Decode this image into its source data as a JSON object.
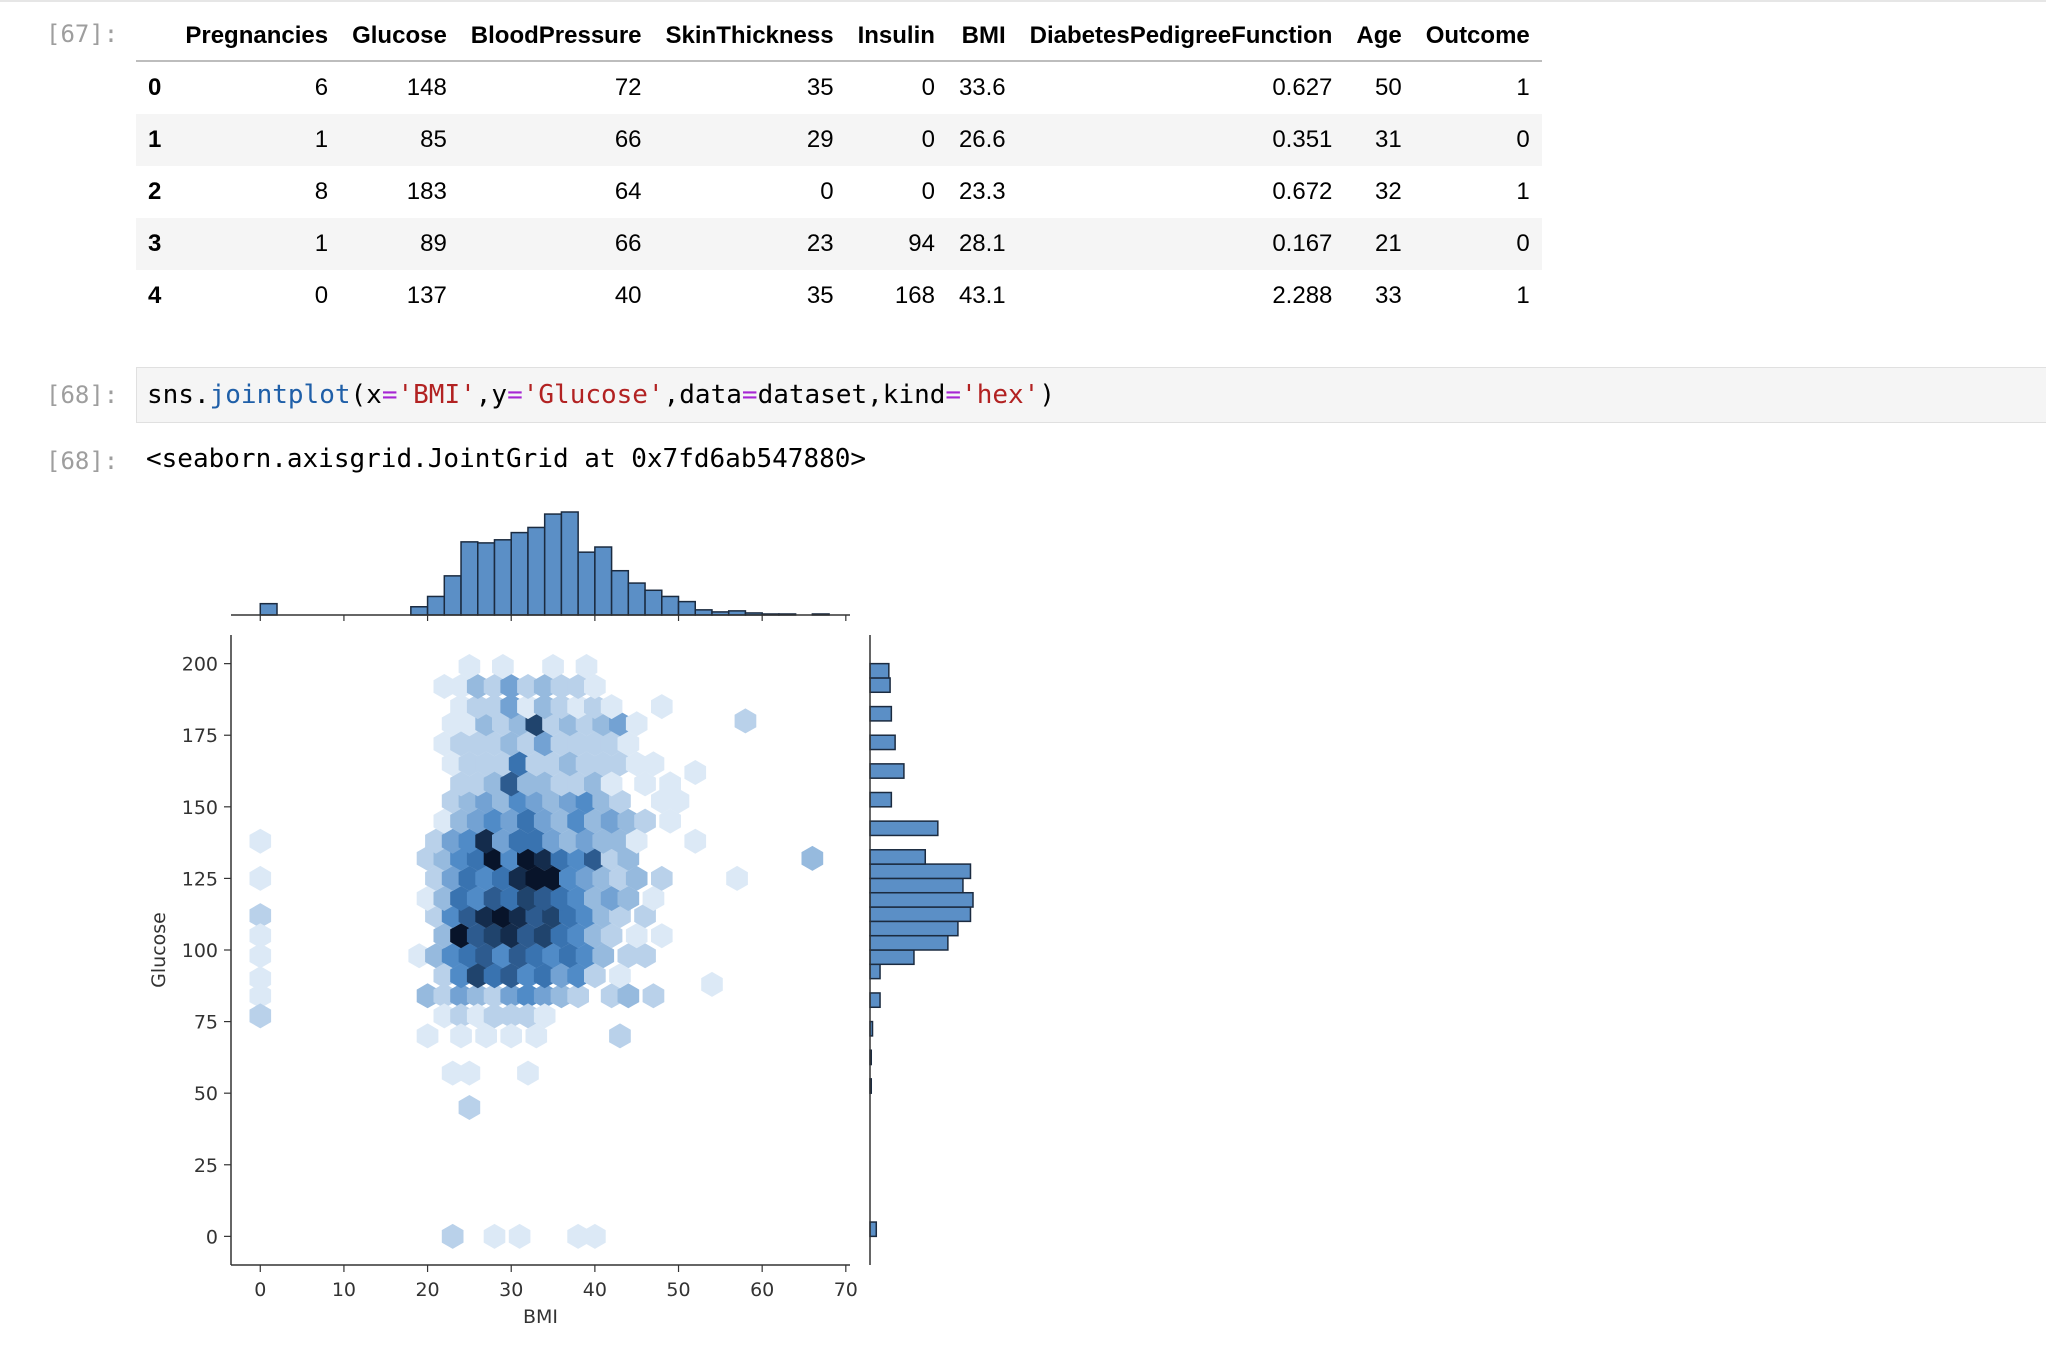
{
  "cells": {
    "df_prompt": "[67]:",
    "code_prompt": "[68]:",
    "out_prompt": "[68]:"
  },
  "dataframe": {
    "columns": [
      "",
      "Pregnancies",
      "Glucose",
      "BloodPressure",
      "SkinThickness",
      "Insulin",
      "BMI",
      "DiabetesPedigreeFunction",
      "Age",
      "Outcome"
    ],
    "rows": [
      [
        "0",
        "6",
        "148",
        "72",
        "35",
        "0",
        "33.6",
        "0.627",
        "50",
        "1"
      ],
      [
        "1",
        "1",
        "85",
        "66",
        "29",
        "0",
        "26.6",
        "0.351",
        "31",
        "0"
      ],
      [
        "2",
        "8",
        "183",
        "64",
        "0",
        "0",
        "23.3",
        "0.672",
        "32",
        "1"
      ],
      [
        "3",
        "1",
        "89",
        "66",
        "23",
        "94",
        "28.1",
        "0.167",
        "21",
        "0"
      ],
      [
        "4",
        "0",
        "137",
        "40",
        "35",
        "168",
        "43.1",
        "2.288",
        "33",
        "1"
      ]
    ]
  },
  "code": {
    "tokens": [
      {
        "t": "sns.",
        "c": ""
      },
      {
        "t": "jointplot",
        "c": "tk-fn"
      },
      {
        "t": "(x",
        "c": ""
      },
      {
        "t": "=",
        "c": "tk-op"
      },
      {
        "t": "'BMI'",
        "c": "tk-str"
      },
      {
        "t": ",y",
        "c": ""
      },
      {
        "t": "=",
        "c": "tk-op"
      },
      {
        "t": "'Glucose'",
        "c": "tk-str"
      },
      {
        "t": ",data",
        "c": ""
      },
      {
        "t": "=",
        "c": "tk-op"
      },
      {
        "t": "dataset,kind",
        "c": ""
      },
      {
        "t": "=",
        "c": "tk-op"
      },
      {
        "t": "'hex'",
        "c": "tk-str"
      },
      {
        "t": ")",
        "c": ""
      }
    ]
  },
  "output_text": "<seaborn.axisgrid.JointGrid at 0x7fd6ab547880>",
  "chart_data": {
    "type": "hexbin",
    "xlabel": "BMI",
    "ylabel": "Glucose",
    "xlim": [
      -3.5,
      70.5
    ],
    "ylim": [
      -10,
      210
    ],
    "xticks": [
      0,
      10,
      20,
      30,
      40,
      50,
      60,
      70
    ],
    "yticks": [
      0,
      25,
      50,
      75,
      100,
      125,
      150,
      175,
      200
    ],
    "colormap": {
      "low": "#dce9f6",
      "mid": "#3f7fc1",
      "high": "#08142a"
    },
    "hex_cells": [
      [
        0,
        138,
        1
      ],
      [
        0,
        125,
        1
      ],
      [
        0,
        112,
        2
      ],
      [
        0,
        105,
        1
      ],
      [
        0,
        98,
        1
      ],
      [
        0,
        90,
        1
      ],
      [
        0,
        84,
        1
      ],
      [
        0,
        77,
        2
      ],
      [
        23,
        0,
        2
      ],
      [
        28,
        0,
        1
      ],
      [
        31,
        0,
        1
      ],
      [
        38,
        0,
        1
      ],
      [
        40,
        0,
        1
      ],
      [
        25,
        45,
        2
      ],
      [
        23,
        57,
        1
      ],
      [
        25,
        57,
        1
      ],
      [
        32,
        57,
        1
      ],
      [
        20,
        84,
        3
      ],
      [
        22,
        84,
        2
      ],
      [
        24,
        84,
        4
      ],
      [
        26,
        84,
        3
      ],
      [
        28,
        84,
        2
      ],
      [
        30,
        84,
        4
      ],
      [
        32,
        84,
        5
      ],
      [
        34,
        84,
        4
      ],
      [
        36,
        84,
        3
      ],
      [
        38,
        84,
        2
      ],
      [
        42,
        84,
        2
      ],
      [
        44,
        84,
        3
      ],
      [
        47,
        84,
        2
      ],
      [
        22,
        77,
        1
      ],
      [
        24,
        77,
        2
      ],
      [
        26,
        77,
        1
      ],
      [
        28,
        77,
        2
      ],
      [
        30,
        77,
        2
      ],
      [
        32,
        77,
        2
      ],
      [
        34,
        77,
        1
      ],
      [
        20,
        70,
        1
      ],
      [
        24,
        70,
        1
      ],
      [
        27,
        70,
        1
      ],
      [
        30,
        70,
        1
      ],
      [
        33,
        70,
        1
      ],
      [
        43,
        70,
        2
      ],
      [
        54,
        88,
        1
      ],
      [
        19,
        98,
        1
      ],
      [
        21,
        98,
        3
      ],
      [
        23,
        98,
        5
      ],
      [
        25,
        98,
        6
      ],
      [
        27,
        98,
        7
      ],
      [
        29,
        98,
        5
      ],
      [
        31,
        98,
        7
      ],
      [
        33,
        98,
        6
      ],
      [
        35,
        98,
        5
      ],
      [
        37,
        98,
        6
      ],
      [
        39,
        98,
        5
      ],
      [
        41,
        98,
        3
      ],
      [
        44,
        98,
        2
      ],
      [
        46,
        98,
        2
      ],
      [
        22,
        91,
        2
      ],
      [
        24,
        91,
        5
      ],
      [
        26,
        91,
        8
      ],
      [
        28,
        91,
        6
      ],
      [
        30,
        91,
        7
      ],
      [
        32,
        91,
        5
      ],
      [
        34,
        91,
        6
      ],
      [
        36,
        91,
        4
      ],
      [
        38,
        91,
        5
      ],
      [
        40,
        91,
        2
      ],
      [
        43,
        91,
        1
      ],
      [
        22,
        105,
        3
      ],
      [
        24,
        105,
        10
      ],
      [
        26,
        105,
        7
      ],
      [
        28,
        105,
        8
      ],
      [
        30,
        105,
        9
      ],
      [
        32,
        105,
        7
      ],
      [
        34,
        105,
        8
      ],
      [
        36,
        105,
        6
      ],
      [
        38,
        105,
        5
      ],
      [
        40,
        105,
        3
      ],
      [
        42,
        105,
        2
      ],
      [
        45,
        105,
        1
      ],
      [
        48,
        105,
        1
      ],
      [
        21,
        112,
        2
      ],
      [
        23,
        112,
        5
      ],
      [
        25,
        112,
        7
      ],
      [
        27,
        112,
        9
      ],
      [
        29,
        112,
        10
      ],
      [
        31,
        112,
        9
      ],
      [
        33,
        112,
        7
      ],
      [
        35,
        112,
        8
      ],
      [
        37,
        112,
        6
      ],
      [
        39,
        112,
        5
      ],
      [
        41,
        112,
        3
      ],
      [
        43,
        112,
        2
      ],
      [
        46,
        112,
        2
      ],
      [
        20,
        118,
        1
      ],
      [
        22,
        118,
        3
      ],
      [
        24,
        118,
        6
      ],
      [
        26,
        118,
        5
      ],
      [
        28,
        118,
        7
      ],
      [
        30,
        118,
        6
      ],
      [
        32,
        118,
        8
      ],
      [
        34,
        118,
        7
      ],
      [
        36,
        118,
        6
      ],
      [
        38,
        118,
        5
      ],
      [
        40,
        118,
        3
      ],
      [
        42,
        118,
        4
      ],
      [
        44,
        118,
        3
      ],
      [
        47,
        118,
        1
      ],
      [
        21,
        125,
        2
      ],
      [
        23,
        125,
        4
      ],
      [
        25,
        125,
        6
      ],
      [
        27,
        125,
        5
      ],
      [
        29,
        125,
        6
      ],
      [
        31,
        125,
        9
      ],
      [
        33,
        125,
        10
      ],
      [
        35,
        125,
        10
      ],
      [
        37,
        125,
        5
      ],
      [
        39,
        125,
        4
      ],
      [
        41,
        125,
        3
      ],
      [
        43,
        125,
        2
      ],
      [
        45,
        125,
        3
      ],
      [
        48,
        125,
        2
      ],
      [
        57,
        125,
        1
      ],
      [
        20,
        132,
        2
      ],
      [
        22,
        132,
        3
      ],
      [
        24,
        132,
        5
      ],
      [
        26,
        132,
        6
      ],
      [
        28,
        132,
        10
      ],
      [
        30,
        132,
        5
      ],
      [
        32,
        132,
        10
      ],
      [
        34,
        132,
        9
      ],
      [
        36,
        132,
        6
      ],
      [
        38,
        132,
        5
      ],
      [
        40,
        132,
        7
      ],
      [
        42,
        132,
        2
      ],
      [
        44,
        132,
        3
      ],
      [
        52,
        138,
        1
      ],
      [
        66,
        132,
        3
      ],
      [
        21,
        138,
        2
      ],
      [
        23,
        138,
        4
      ],
      [
        25,
        138,
        5
      ],
      [
        27,
        138,
        9
      ],
      [
        29,
        138,
        4
      ],
      [
        31,
        138,
        6
      ],
      [
        33,
        138,
        6
      ],
      [
        35,
        138,
        4
      ],
      [
        37,
        138,
        3
      ],
      [
        39,
        138,
        4
      ],
      [
        41,
        138,
        3
      ],
      [
        43,
        138,
        3
      ],
      [
        45,
        138,
        1
      ],
      [
        22,
        145,
        1
      ],
      [
        24,
        145,
        3
      ],
      [
        26,
        145,
        4
      ],
      [
        28,
        145,
        5
      ],
      [
        30,
        145,
        4
      ],
      [
        32,
        145,
        6
      ],
      [
        34,
        145,
        4
      ],
      [
        36,
        145,
        3
      ],
      [
        38,
        145,
        5
      ],
      [
        40,
        145,
        3
      ],
      [
        42,
        145,
        4
      ],
      [
        44,
        145,
        3
      ],
      [
        46,
        145,
        2
      ],
      [
        49,
        145,
        1
      ],
      [
        23,
        152,
        2
      ],
      [
        25,
        152,
        3
      ],
      [
        27,
        152,
        4
      ],
      [
        29,
        152,
        3
      ],
      [
        31,
        152,
        5
      ],
      [
        33,
        152,
        4
      ],
      [
        35,
        152,
        3
      ],
      [
        37,
        152,
        4
      ],
      [
        39,
        152,
        5
      ],
      [
        41,
        152,
        3
      ],
      [
        43,
        152,
        2
      ],
      [
        48,
        152,
        1
      ],
      [
        50,
        152,
        1
      ],
      [
        24,
        158,
        2
      ],
      [
        26,
        158,
        2
      ],
      [
        28,
        158,
        3
      ],
      [
        30,
        158,
        7
      ],
      [
        32,
        158,
        3
      ],
      [
        34,
        158,
        3
      ],
      [
        36,
        158,
        2
      ],
      [
        38,
        158,
        2
      ],
      [
        40,
        158,
        3
      ],
      [
        42,
        158,
        1
      ],
      [
        46,
        158,
        1
      ],
      [
        49,
        158,
        1
      ],
      [
        23,
        165,
        1
      ],
      [
        25,
        165,
        2
      ],
      [
        27,
        165,
        2
      ],
      [
        29,
        165,
        2
      ],
      [
        31,
        165,
        6
      ],
      [
        33,
        165,
        2
      ],
      [
        35,
        165,
        2
      ],
      [
        37,
        165,
        3
      ],
      [
        39,
        165,
        2
      ],
      [
        41,
        165,
        2
      ],
      [
        43,
        165,
        2
      ],
      [
        45,
        165,
        1
      ],
      [
        47,
        165,
        1
      ],
      [
        52,
        162,
        1
      ],
      [
        22,
        172,
        1
      ],
      [
        24,
        172,
        2
      ],
      [
        26,
        172,
        2
      ],
      [
        28,
        172,
        2
      ],
      [
        30,
        172,
        3
      ],
      [
        32,
        172,
        2
      ],
      [
        34,
        172,
        4
      ],
      [
        36,
        172,
        2
      ],
      [
        38,
        172,
        2
      ],
      [
        40,
        172,
        2
      ],
      [
        42,
        172,
        2
      ],
      [
        44,
        172,
        1
      ],
      [
        23,
        179,
        1
      ],
      [
        25,
        179,
        1
      ],
      [
        27,
        179,
        3
      ],
      [
        29,
        179,
        2
      ],
      [
        31,
        179,
        3
      ],
      [
        33,
        179,
        8
      ],
      [
        35,
        179,
        2
      ],
      [
        37,
        179,
        3
      ],
      [
        39,
        179,
        2
      ],
      [
        41,
        179,
        3
      ],
      [
        43,
        179,
        4
      ],
      [
        45,
        179,
        1
      ],
      [
        58,
        180,
        2
      ],
      [
        24,
        185,
        1
      ],
      [
        26,
        185,
        2
      ],
      [
        28,
        185,
        2
      ],
      [
        30,
        185,
        4
      ],
      [
        32,
        185,
        1
      ],
      [
        34,
        185,
        3
      ],
      [
        36,
        185,
        2
      ],
      [
        38,
        185,
        1
      ],
      [
        40,
        185,
        2
      ],
      [
        42,
        185,
        1
      ],
      [
        48,
        185,
        1
      ],
      [
        22,
        192,
        1
      ],
      [
        24,
        192,
        1
      ],
      [
        26,
        192,
        3
      ],
      [
        28,
        192,
        2
      ],
      [
        30,
        192,
        4
      ],
      [
        32,
        192,
        2
      ],
      [
        34,
        192,
        3
      ],
      [
        36,
        192,
        2
      ],
      [
        38,
        192,
        2
      ],
      [
        40,
        192,
        1
      ],
      [
        25,
        199,
        1
      ],
      [
        29,
        199,
        1
      ],
      [
        35,
        199,
        1
      ],
      [
        39,
        199,
        1
      ]
    ],
    "top_hist": {
      "bin_edges": [
        0,
        2,
        4,
        6,
        8,
        10,
        12,
        14,
        16,
        18,
        20,
        22,
        24,
        26,
        28,
        30,
        32,
        34,
        36,
        38,
        40,
        42,
        44,
        46,
        48,
        50,
        52,
        54,
        56,
        58,
        60,
        62,
        64,
        66,
        68
      ],
      "counts": [
        11,
        0,
        0,
        0,
        0,
        0,
        0,
        0,
        0,
        8,
        18,
        38,
        71,
        70,
        73,
        80,
        85,
        98,
        100,
        61,
        66,
        43,
        31,
        24,
        18,
        13,
        5,
        3,
        4,
        2,
        1,
        1,
        0,
        1
      ]
    },
    "right_hist": {
      "bin_edges": [
        0,
        5,
        10,
        15,
        20,
        25,
        30,
        35,
        40,
        45,
        50,
        55,
        60,
        65,
        70,
        75,
        80,
        85,
        90,
        95,
        100,
        105,
        110,
        115,
        120,
        125,
        130,
        135,
        140,
        145,
        150,
        155,
        160,
        165,
        170,
        175,
        180,
        185,
        190,
        195,
        200
      ],
      "counts": [
        5,
        0,
        0,
        0,
        0,
        0,
        0,
        0,
        0,
        0,
        1,
        0,
        1,
        0,
        2,
        0,
        8,
        0,
        8,
        35,
        62,
        70,
        80,
        82,
        74,
        80,
        44,
        0,
        54,
        0,
        17,
        0,
        27,
        0,
        20,
        0,
        17,
        0,
        16,
        15
      ]
    }
  }
}
